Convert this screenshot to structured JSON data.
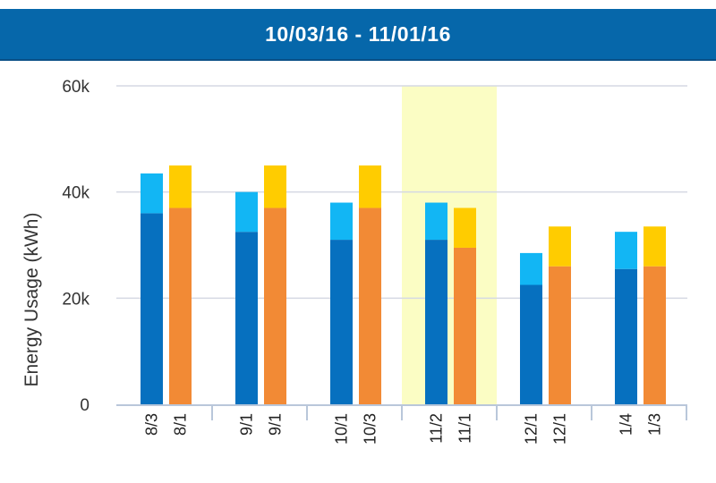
{
  "header": {
    "title": "10/03/16 - 11/01/16"
  },
  "chart_data": {
    "type": "bar",
    "stacked": true,
    "title": "10/03/16 - 11/01/16",
    "ylabel": "Energy Usage (kWh)",
    "ylim": [
      0,
      60000
    ],
    "yticks": [
      0,
      20000,
      40000,
      60000
    ],
    "ytick_labels": [
      "0",
      "20k",
      "40k",
      "60k"
    ],
    "grid": true,
    "highlighted_group": 3,
    "groups": [
      {
        "bars": [
          {
            "label": "8/3",
            "base": 36000,
            "top": 7500,
            "colors": [
              "#0670bf",
              "#12b6f4"
            ]
          },
          {
            "label": "8/1",
            "base": 37000,
            "top": 8000,
            "colors": [
              "#f28a35",
              "#ffcc00"
            ]
          }
        ]
      },
      {
        "bars": [
          {
            "label": "9/1",
            "base": 32500,
            "top": 7500,
            "colors": [
              "#0670bf",
              "#12b6f4"
            ]
          },
          {
            "label": "9/1",
            "base": 37000,
            "top": 8000,
            "colors": [
              "#f28a35",
              "#ffcc00"
            ]
          }
        ]
      },
      {
        "bars": [
          {
            "label": "10/1",
            "base": 31000,
            "top": 7000,
            "colors": [
              "#0670bf",
              "#12b6f4"
            ]
          },
          {
            "label": "10/3",
            "base": 37000,
            "top": 8000,
            "colors": [
              "#f28a35",
              "#ffcc00"
            ]
          }
        ]
      },
      {
        "bars": [
          {
            "label": "11/2",
            "base": 31000,
            "top": 7000,
            "colors": [
              "#0670bf",
              "#12b6f4"
            ]
          },
          {
            "label": "11/1",
            "base": 29500,
            "top": 7500,
            "colors": [
              "#f28a35",
              "#ffcc00"
            ]
          }
        ]
      },
      {
        "bars": [
          {
            "label": "12/1",
            "base": 22500,
            "top": 6000,
            "colors": [
              "#0670bf",
              "#12b6f4"
            ]
          },
          {
            "label": "12/1",
            "base": 26000,
            "top": 7500,
            "colors": [
              "#f28a35",
              "#ffcc00"
            ]
          }
        ]
      },
      {
        "bars": [
          {
            "label": "1/4",
            "base": 25500,
            "top": 7000,
            "colors": [
              "#0670bf",
              "#12b6f4"
            ]
          },
          {
            "label": "1/3",
            "base": 26000,
            "top": 7500,
            "colors": [
              "#f28a35",
              "#ffcc00"
            ]
          }
        ]
      }
    ],
    "colors": {
      "highlight": "#fbfdc4",
      "grid": "#d5d9e3",
      "axis": "#b9c7da"
    }
  }
}
